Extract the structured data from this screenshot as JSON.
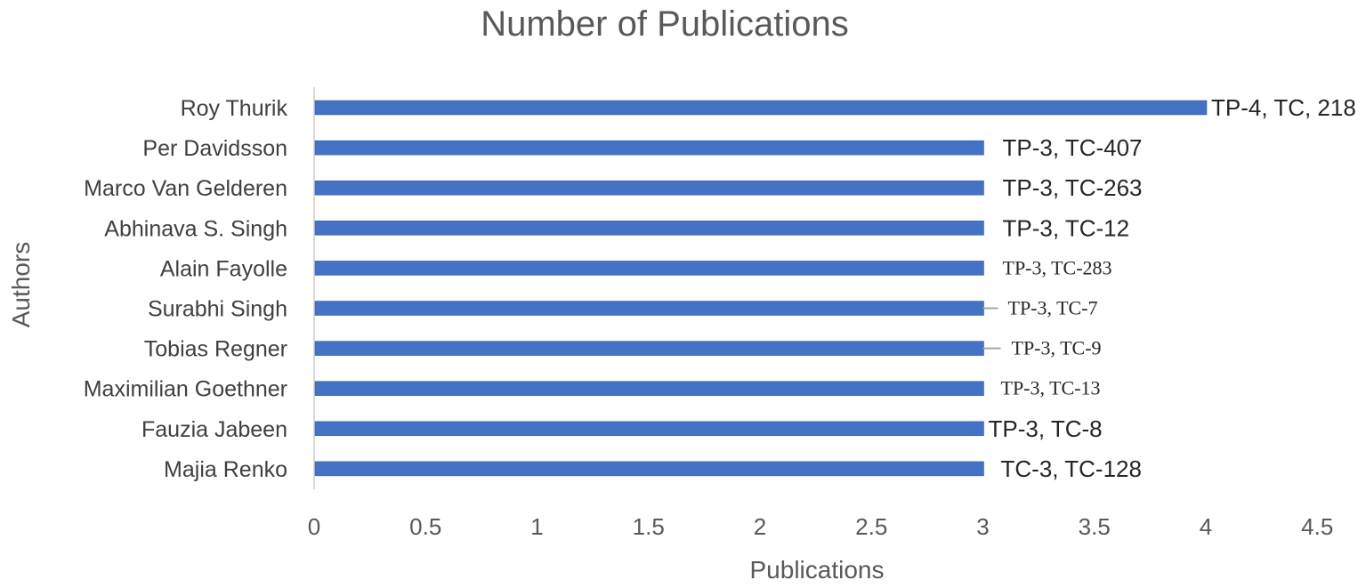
{
  "chart_data": {
    "type": "bar",
    "orientation": "horizontal",
    "title": "Number of Publications",
    "xlabel": "Publications",
    "ylabel": "Authors",
    "xlim": [
      0,
      4.5
    ],
    "x_ticks": [
      "0",
      "0.5",
      "1",
      "1.5",
      "2",
      "2.5",
      "3",
      "3.5",
      "4",
      "4.5"
    ],
    "grid": false,
    "legend": "none",
    "bar_color": "#4472C4",
    "categories": [
      "Roy Thurik",
      "Per Davidsson",
      "Marco Van Gelderen",
      "Abhinava S. Singh",
      "Alain Fayolle",
      "Surabhi Singh",
      "Tobias Regner",
      "Maximilian Goethner",
      "Fauzia Jabeen",
      "Majia Renko"
    ],
    "values": [
      4,
      3,
      3,
      3,
      3,
      3,
      3,
      3,
      3,
      3
    ],
    "data_labels": [
      "TP-4, TC, 218",
      "TP-3, TC-407",
      "TP-3, TC-263",
      "TP-3, TC-12",
      "TP-3, TC-283",
      "TP-3, TC-7",
      "TP-3, TC-9",
      "TP-3, TC-13",
      "TP-3, TC-8",
      "TC-3, TC-128"
    ]
  }
}
